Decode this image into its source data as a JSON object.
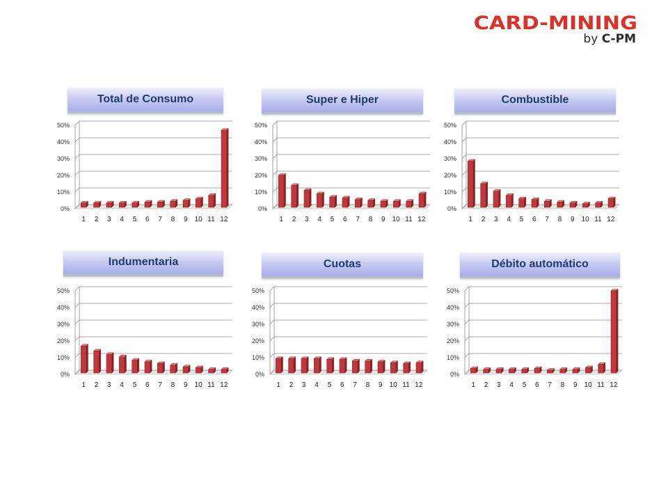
{
  "logo": {
    "main": "CARD-MINING",
    "sub_by": "by",
    "sub_brand": "C-PM",
    "color": "#d9322a"
  },
  "bar_color": "#c0383b",
  "chart_data": [
    {
      "type": "bar",
      "title": "Total de Consumo",
      "categories": [
        "1",
        "2",
        "3",
        "4",
        "5",
        "6",
        "7",
        "8",
        "9",
        "10",
        "11",
        "12"
      ],
      "values": [
        3.5,
        3.5,
        3.5,
        3.5,
        3.5,
        4,
        4,
        4.5,
        5,
        6,
        8,
        47
      ],
      "ylim": [
        0,
        50
      ],
      "yticks": [
        "0%",
        "10%",
        "20%",
        "30%",
        "40%",
        "50%"
      ],
      "grid": true
    },
    {
      "type": "bar",
      "title": "Super e Hiper",
      "categories": [
        "1",
        "2",
        "3",
        "4",
        "5",
        "6",
        "7",
        "8",
        "9",
        "10",
        "11",
        "12"
      ],
      "values": [
        20,
        14,
        11,
        9,
        7,
        6.5,
        5.5,
        5,
        4.5,
        4.5,
        4.5,
        9
      ],
      "ylim": [
        0,
        50
      ],
      "yticks": [
        "0%",
        "10%",
        "20%",
        "30%",
        "40%",
        "50%"
      ],
      "grid": true
    },
    {
      "type": "bar",
      "title": "Combustible",
      "categories": [
        "1",
        "2",
        "3",
        "4",
        "5",
        "6",
        "7",
        "8",
        "9",
        "10",
        "11",
        "12"
      ],
      "values": [
        28.5,
        15,
        10.5,
        8,
        6,
        5.5,
        4.5,
        4,
        3.5,
        3,
        3.5,
        6
      ],
      "ylim": [
        0,
        50
      ],
      "yticks": [
        "0%",
        "10%",
        "20%",
        "30%",
        "40%",
        "50%"
      ],
      "grid": true
    },
    {
      "type": "bar",
      "title": "Indumentaria",
      "categories": [
        "1",
        "2",
        "3",
        "4",
        "5",
        "6",
        "7",
        "8",
        "9",
        "10",
        "11",
        "12"
      ],
      "values": [
        17,
        14,
        12,
        10.5,
        8.5,
        7.5,
        6.5,
        5.5,
        4.5,
        4,
        3,
        3
      ],
      "ylim": [
        0,
        50
      ],
      "yticks": [
        "0%",
        "10%",
        "20%",
        "30%",
        "40%",
        "50%"
      ],
      "grid": true
    },
    {
      "type": "bar",
      "title": "Cuotas",
      "categories": [
        "1",
        "2",
        "3",
        "4",
        "5",
        "6",
        "7",
        "8",
        "9",
        "10",
        "11",
        "12"
      ],
      "values": [
        9.5,
        9.5,
        9.5,
        9.5,
        9,
        9,
        8,
        8,
        7.5,
        7,
        6.5,
        7
      ],
      "ylim": [
        0,
        50
      ],
      "yticks": [
        "0%",
        "10%",
        "20%",
        "30%",
        "40%",
        "50%"
      ],
      "grid": true
    },
    {
      "type": "bar",
      "title": "Débito automático",
      "categories": [
        "1",
        "2",
        "3",
        "4",
        "5",
        "6",
        "7",
        "8",
        "9",
        "10",
        "11",
        "12"
      ],
      "values": [
        3.5,
        3,
        3,
        3,
        3,
        3.5,
        2.5,
        3,
        3,
        4,
        6,
        50
      ],
      "ylim": [
        0,
        50
      ],
      "yticks": [
        "0%",
        "10%",
        "20%",
        "30%",
        "40%",
        "50%"
      ],
      "grid": true
    }
  ]
}
